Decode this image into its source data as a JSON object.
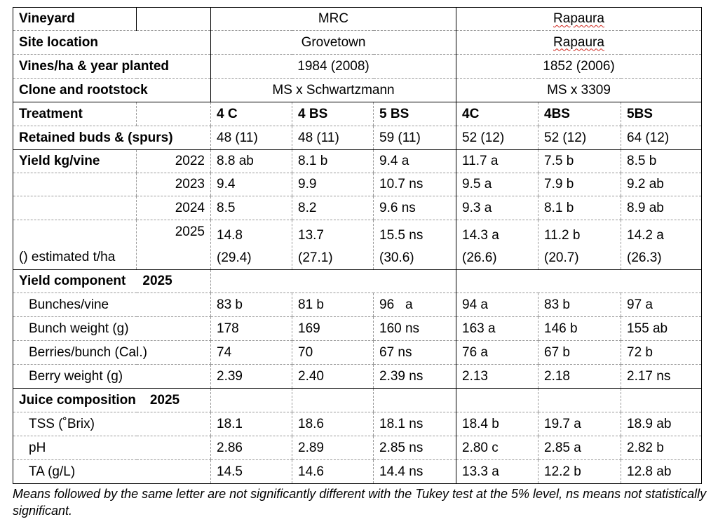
{
  "header": {
    "vineyard_label": "Vineyard",
    "vineyard_mrc": "MRC",
    "vineyard_rap": "Rapaura",
    "site_label": "Site location",
    "site_mrc": "Grovetown",
    "site_rap": "Rapaura",
    "vines_label": "Vines/ha & year planted",
    "vines_mrc": "1984 (2008)",
    "vines_rap": "1852 (2006)",
    "clone_label": "Clone and rootstock",
    "clone_mrc": "MS x Schwartzmann",
    "clone_rap": "MS x 3309"
  },
  "treatment": {
    "label": "Treatment",
    "cols": [
      "4 C",
      "4 BS",
      "5 BS",
      "4C",
      "4BS",
      "5BS"
    ]
  },
  "buds": {
    "label": "Retained buds & (spurs)",
    "values": [
      "48 (11)",
      "48 (11)",
      "59 (11)",
      "52 (12)",
      "52 (12)",
      "64 (12)"
    ]
  },
  "yield": {
    "label": "Yield kg/vine",
    "est_label": "() estimated t/ha",
    "rows": [
      {
        "year": "2022",
        "values": [
          "8.8 ab",
          "8.1 b",
          "9.4 a",
          "11.7 a",
          "7.5 b",
          "8.5 b"
        ]
      },
      {
        "year": "2023",
        "values": [
          "9.4",
          "9.9",
          "10.7 ns",
          "9.5 a",
          "7.9 b",
          "9.2 ab"
        ]
      },
      {
        "year": "2024",
        "values": [
          "8.5",
          "8.2",
          "9.6 ns",
          "9.3 a",
          "8.1 b",
          "8.9 ab"
        ]
      },
      {
        "year": "2025",
        "values": [
          "14.8",
          "13.7",
          "15.5 ns",
          "14.3 a",
          "11.2 b",
          "14.2 a"
        ],
        "est": [
          "(29.4)",
          "(27.1)",
          "(30.6)",
          "(26.6)",
          "(20.7)",
          "(26.3)"
        ]
      }
    ]
  },
  "yield_component": {
    "label": "Yield component",
    "year": "2025",
    "rows": [
      {
        "label": "Bunches/vine",
        "values": [
          "83 b",
          "81 b",
          "96   a",
          "94 a",
          "83 b",
          "97 a"
        ]
      },
      {
        "label": "Bunch weight (g)",
        "values": [
          "178",
          "169",
          "160 ns",
          "163 a",
          "146 b",
          "155 ab"
        ]
      },
      {
        "label": "Berries/bunch (Cal.)",
        "values": [
          "74",
          "70",
          "67 ns",
          "76 a",
          "67 b",
          "72 b"
        ]
      },
      {
        "label": "Berry weight (g)",
        "values": [
          "2.39",
          "2.40",
          "2.39 ns",
          "2.13",
          "2.18",
          "2.17 ns"
        ]
      }
    ]
  },
  "juice": {
    "label": "Juice composition",
    "year": "2025",
    "rows": [
      {
        "label": "TSS (˚Brix)",
        "values": [
          "18.1",
          "18.6",
          "18.1 ns",
          "18.4 b",
          "19.7 a",
          "18.9 ab"
        ]
      },
      {
        "label": "pH",
        "values": [
          "2.86",
          "2.89",
          "2.85 ns",
          "2.80 c",
          "2.85 a",
          "2.82 b"
        ]
      },
      {
        "label": "TA (g/L)",
        "values": [
          "14.5",
          "14.6",
          "14.4 ns",
          "13.3 a",
          "12.2 b",
          "12.8 ab"
        ]
      }
    ]
  },
  "footnote": "Means followed by the same letter are not significantly different with the Tukey test at the 5% level, ns means not statistically significant."
}
